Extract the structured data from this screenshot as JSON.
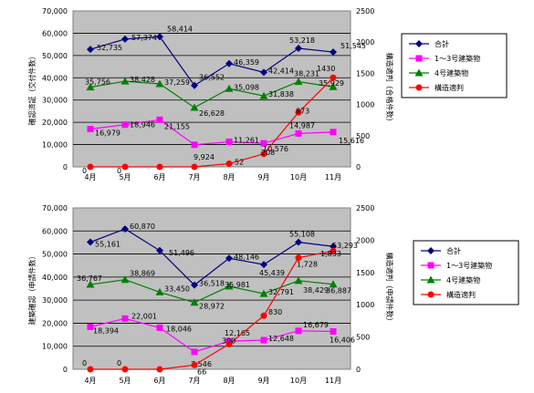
{
  "chart_data": [
    {
      "type": "line",
      "categories": [
        "4月",
        "5月",
        "6月",
        "7月",
        "8月",
        "9月",
        "10月",
        "11月"
      ],
      "ylabel": "確認済証（交付件数）",
      "y2label": "構造適判（合格件数）",
      "ylim": [
        0,
        70000
      ],
      "y2lim": [
        0,
        2500
      ],
      "yticks": [
        "0",
        "10,000",
        "20,000",
        "30,000",
        "40,000",
        "50,000",
        "60,000",
        "70,000"
      ],
      "y2ticks": [
        "0",
        "500",
        "1000",
        "1500",
        "2000",
        "2500"
      ],
      "grid": true,
      "plot_background": "#c0c0c0",
      "legend_position": "right",
      "series": [
        {
          "name": "合計",
          "axis": "left",
          "color": "#000080",
          "marker": "diamond",
          "values": [
            52735,
            57374,
            58414,
            36552,
            46359,
            42414,
            53218,
            51545
          ],
          "labels": [
            "52,735",
            "57,374",
            "58,414",
            "36,552",
            "46,359",
            "42,414",
            "53,218",
            "51,545"
          ]
        },
        {
          "name": "1～3号建築物",
          "axis": "left",
          "color": "#ff00ff",
          "marker": "square",
          "values": [
            16979,
            18946,
            21155,
            9924,
            11261,
            10576,
            14987,
            15616
          ],
          "labels": [
            "16,979",
            "18,946",
            "21,155",
            "9,924",
            "11,261",
            "10,576",
            "14,987",
            "15,616"
          ]
        },
        {
          "name": "4号建築物",
          "axis": "left",
          "color": "#008000",
          "marker": "triangle",
          "values": [
            35756,
            38428,
            37259,
            26628,
            35098,
            31838,
            38231,
            35929
          ],
          "labels": [
            "35,756",
            "38,428",
            "37,259",
            "26,628",
            "35,098",
            "31,838",
            "38,231",
            "35,929"
          ]
        },
        {
          "name": "構造適判",
          "axis": "right",
          "color": "#ff0000",
          "marker": "circle",
          "values": [
            0,
            0,
            0,
            0,
            52,
            208,
            873,
            1430
          ],
          "labels": [
            "0",
            "0",
            "",
            "",
            "52",
            "208",
            "873",
            "1430"
          ]
        }
      ]
    },
    {
      "type": "line",
      "categories": [
        "4月",
        "5月",
        "6月",
        "7月",
        "8月",
        "9月",
        "10月",
        "11月"
      ],
      "ylabel": "建築確認（申請件数）",
      "y2label": "構造適判（申請件数）",
      "ylim": [
        0,
        70000
      ],
      "y2lim": [
        0,
        2500
      ],
      "yticks": [
        "0",
        "10,000",
        "20,000",
        "30,000",
        "40,000",
        "50,000",
        "60,000",
        "70,000"
      ],
      "y2ticks": [
        "0",
        "500",
        "1000",
        "1500",
        "2000",
        "2500"
      ],
      "grid": true,
      "plot_background": "#c0c0c0",
      "legend_position": "right",
      "series": [
        {
          "name": "合計",
          "axis": "left",
          "color": "#000080",
          "marker": "diamond",
          "values": [
            55161,
            60870,
            51496,
            36518,
            48146,
            45439,
            55108,
            53293
          ],
          "labels": [
            "55,161",
            "60,870",
            "51,496",
            "36,518",
            "48,146",
            "45,439",
            "55,108",
            "53,293"
          ]
        },
        {
          "name": "1～3号建築物",
          "axis": "left",
          "color": "#ff00ff",
          "marker": "square",
          "values": [
            18394,
            22001,
            18046,
            7546,
            12165,
            12648,
            16679,
            16406
          ],
          "labels": [
            "18,394",
            "22,001",
            "18,046",
            "7,546",
            "12,165",
            "12,648",
            "16,679",
            "16,406"
          ]
        },
        {
          "name": "4号建築物",
          "axis": "left",
          "color": "#008000",
          "marker": "triangle",
          "values": [
            36767,
            38869,
            33450,
            28972,
            35981,
            32791,
            38429,
            36887
          ],
          "labels": [
            "36,767",
            "38,869",
            "33,450",
            "28,972",
            "35,981",
            "32,791",
            "38,429",
            "36,887"
          ]
        },
        {
          "name": "構造適判",
          "axis": "right",
          "color": "#ff0000",
          "marker": "circle",
          "values": [
            0,
            0,
            0,
            66,
            390,
            830,
            1728,
            1833
          ],
          "labels": [
            "0",
            "0",
            "",
            "66",
            "390",
            "830",
            "1,728",
            "1,833"
          ]
        }
      ]
    }
  ]
}
